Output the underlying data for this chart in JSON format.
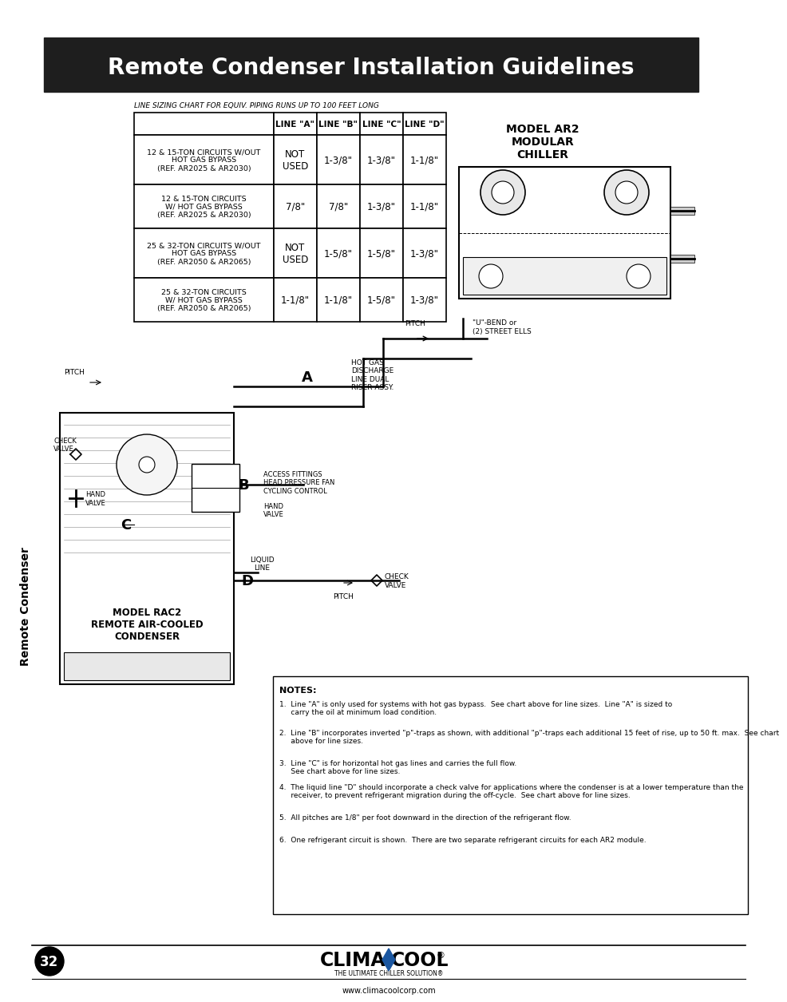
{
  "title": "Remote Condenser Installation Guidelines",
  "title_bg": "#1e1e1e",
  "title_color": "#ffffff",
  "title_fontsize": 20,
  "page_bg": "#ffffff",
  "page_number": "32",
  "footer_url": "www.climacoolcorp.com",
  "footer_sub": "THE ULTIMATE CHILLER SOLUTION®",
  "table_title": "LINE SIZING CHART FOR EQUIV. PIPING RUNS UP TO 100 FEET LONG",
  "table_headers": [
    "",
    "LINE \"A\"",
    "LINE \"B\"",
    "LINE \"C\"",
    "LINE \"D\""
  ],
  "table_rows": [
    [
      "12 & 15-TON CIRCUITS W/OUT\nHOT GAS BYPASS\n(REF. AR2025 & AR2030)",
      "NOT\nUSED",
      "1-3/8\"",
      "1-3/8\"",
      "1-1/8\""
    ],
    [
      "12 & 15-TON CIRCUITS\nW/ HOT GAS BYPASS\n(REF. AR2025 & AR2030)",
      "7/8\"",
      "7/8\"",
      "1-3/8\"",
      "1-1/8\""
    ],
    [
      "25 & 32-TON CIRCUITS W/OUT\nHOT GAS BYPASS\n(REF. AR2050 & AR2065)",
      "NOT\nUSED",
      "1-5/8\"",
      "1-5/8\"",
      "1-3/8\""
    ],
    [
      "25 & 32-TON CIRCUITS\nW/ HOT GAS BYPASS\n(REF. AR2050 & AR2065)",
      "1-1/8\"",
      "1-1/8\"",
      "1-5/8\"",
      "1-3/8\""
    ]
  ],
  "sidebar_label": "Remote Condenser",
  "chiller_label": "MODEL AR2\nMODULAR\nCHILLER",
  "condenser_label": "MODEL RAC2\nREMOTE AIR-COOLED\nCONDENSER",
  "notes_title": "NOTES:",
  "notes": [
    "1.  Line \"A\" is only used for systems with hot gas bypass.  See chart above for line sizes.  Line \"A\" is sized to\n     carry the oil at minimum load condition.",
    "2.  Line \"B\" incorporates inverted \"p\"-traps as shown, with additional \"p\"-traps each additional 15 feet of rise, up to 50 ft. max.  See chart\n     above for line sizes.",
    "3.  Line \"C\" is for horizontal hot gas lines and carries the full flow.\n     See chart above for line sizes.",
    "4.  The liquid line \"D\" should incorporate a check valve for applications where the condenser is at a lower temperature than the\n     receiver, to prevent refrigerant migration during the off-cycle.  See chart above for line sizes.",
    "5.  All pitches are 1/8\" per foot downward in the direction of the refrigerant flow.",
    "6.  One refrigerant circuit is shown.  There are two separate refrigerant circuits for each AR2 module."
  ]
}
